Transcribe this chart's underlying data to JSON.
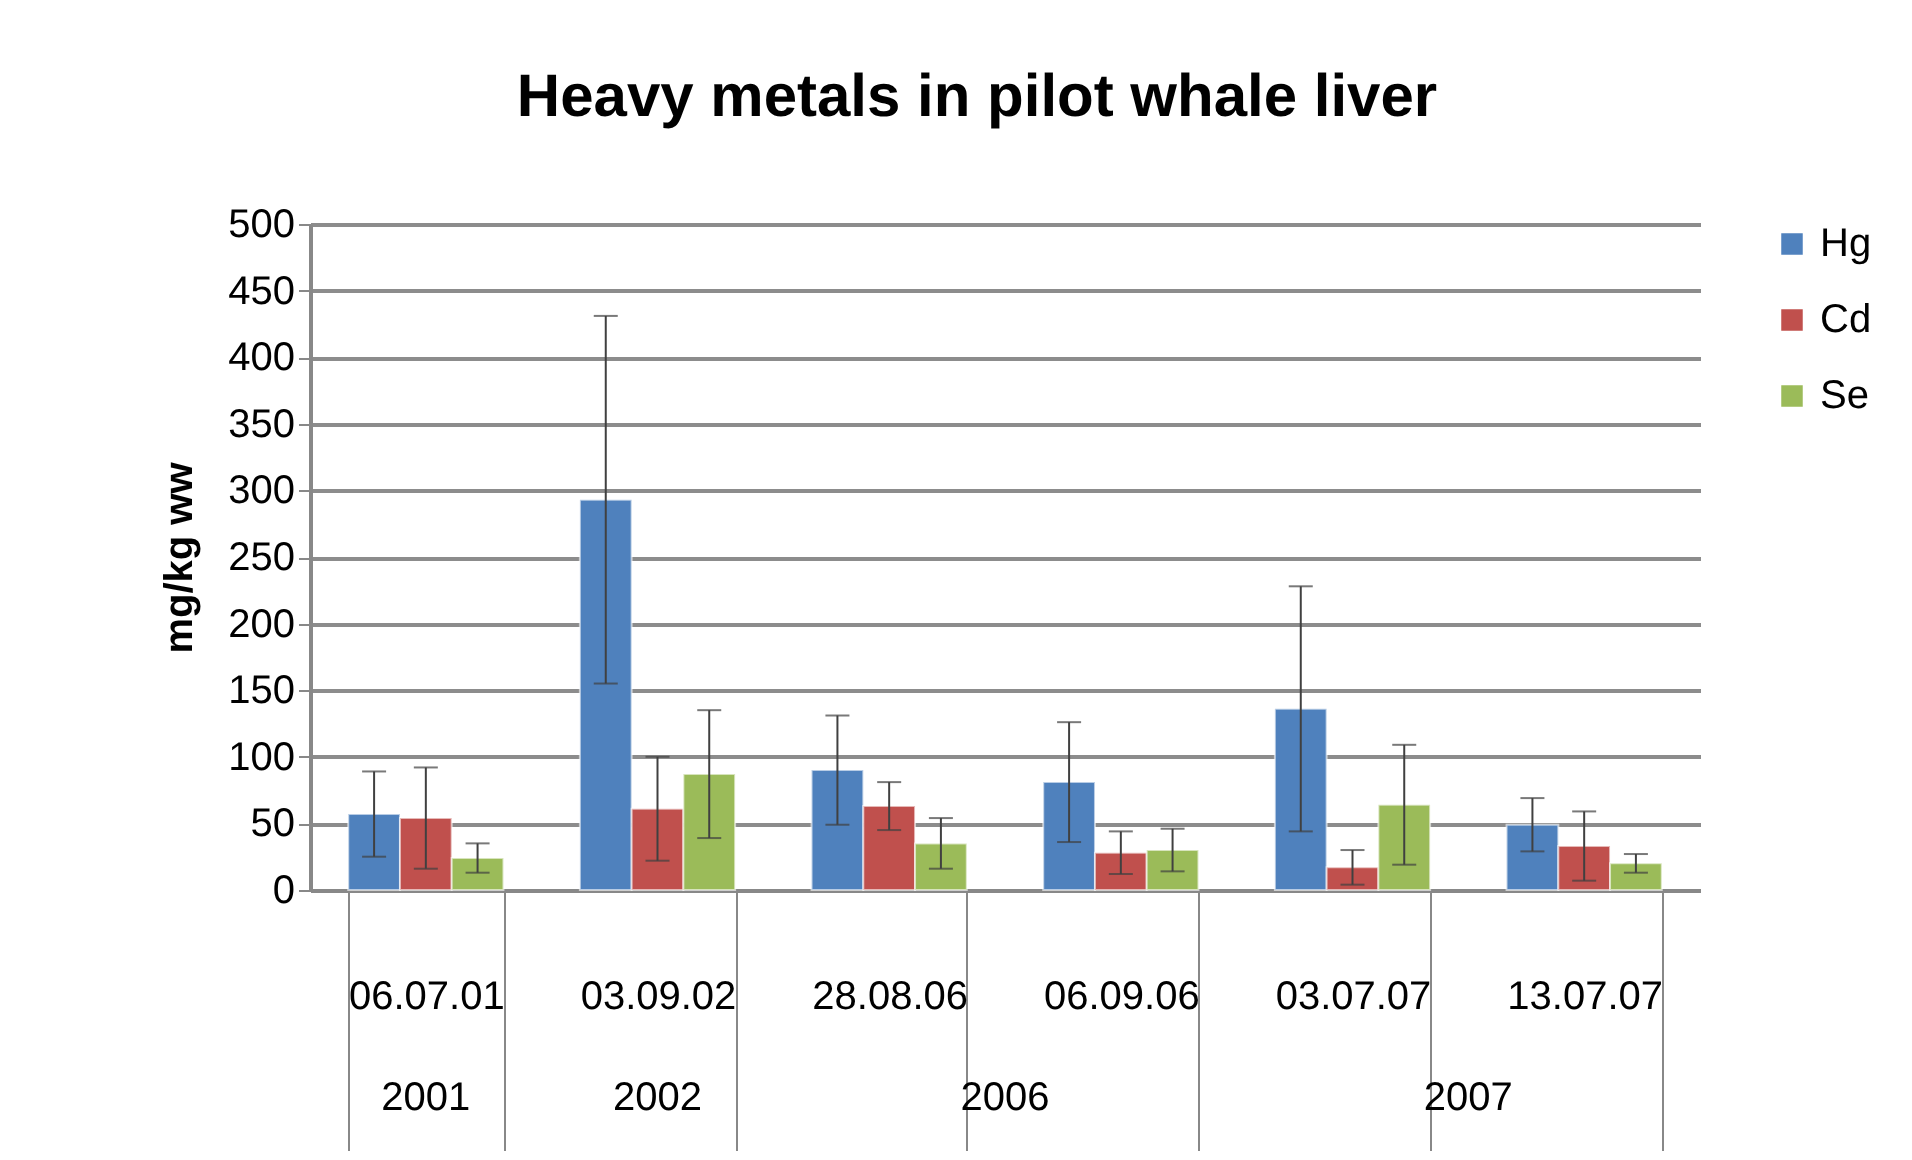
{
  "chart_data": {
    "type": "bar",
    "title": "Heavy metals in pilot whale liver",
    "ylabel": "mg/kg ww",
    "categories": [
      "06.07.01",
      "03.09.02",
      "28.08.06",
      "06.09.06",
      "03.07.07",
      "13.07.07"
    ],
    "series": [
      {
        "name": "Hg",
        "color": "#4f81bd",
        "values": [
          57,
          293,
          90,
          81,
          136,
          49
        ],
        "errors": [
          32,
          138,
          41,
          45,
          92,
          20
        ]
      },
      {
        "name": "Cd",
        "color": "#c0504d",
        "values": [
          54,
          61,
          63,
          28,
          17,
          33
        ],
        "errors": [
          38,
          39,
          18,
          16,
          13,
          26
        ]
      },
      {
        "name": "Se",
        "color": "#9bbb59",
        "values": [
          24,
          87,
          35,
          30,
          64,
          20
        ],
        "errors": [
          11,
          48,
          19,
          16,
          45,
          7
        ]
      }
    ],
    "ylim": [
      0,
      500
    ],
    "yticks": [
      0,
      50,
      100,
      150,
      200,
      250,
      300,
      350,
      400,
      450,
      500
    ],
    "grid": "y",
    "legend": "right",
    "annotations": [
      "2001",
      "2002",
      "2006",
      "2007"
    ]
  }
}
